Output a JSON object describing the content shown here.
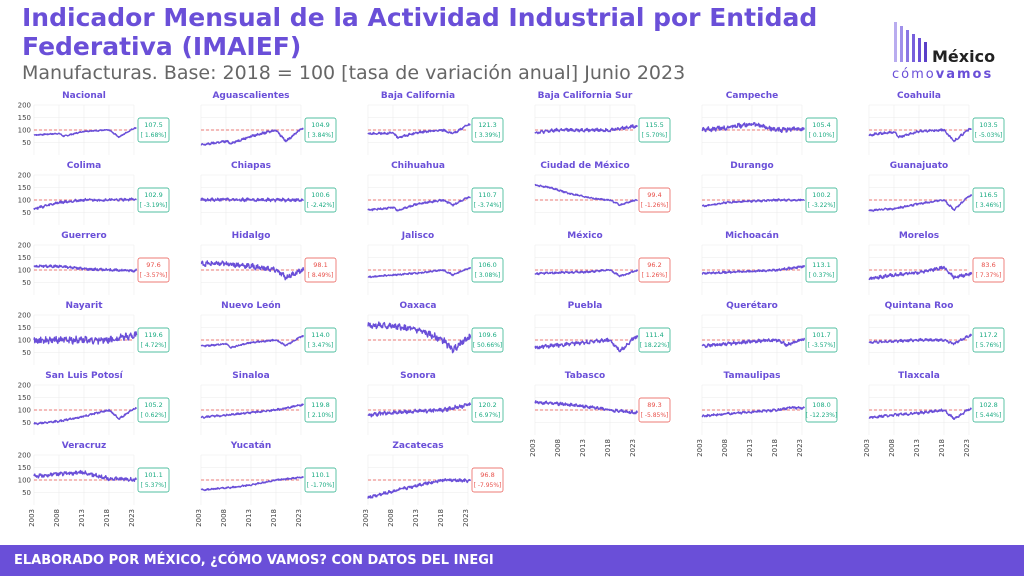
{
  "header": {
    "title": "Indicador Mensual de la Actividad Industrial por Entidad Federativa (IMAIEF)",
    "subtitle": "Manufacturas. Base: 2018 = 100 [tasa de variación anual] Junio 2023"
  },
  "logo": {
    "word1": "México",
    "word2a": "cómo",
    "word2b": "vamos"
  },
  "footer": {
    "text": "ELABORADO POR MÉXICO, ¿CÓMO VAMOS? CON DATOS DEL INEGI"
  },
  "colors": {
    "title": "#6a4fd8",
    "line": "#6a4fd8",
    "positive": "#1aab82",
    "negative": "#e8504a",
    "reference": "#e8504a",
    "footer": "#6a4fd8"
  },
  "chart_data": {
    "type": "line",
    "layout": "small multiples, 6 columns",
    "ylim": [
      0,
      200
    ],
    "yticks": [
      50,
      100,
      150,
      200
    ],
    "xticks": [
      2003,
      2008,
      2013,
      2018,
      2023
    ],
    "reference_line": 100,
    "grid": true,
    "panels": [
      {
        "name": "Nacional",
        "value": "107.5",
        "change": "[ 1.68%]",
        "positive": true,
        "anchors": [
          [
            2003,
            80
          ],
          [
            2008,
            86
          ],
          [
            2009,
            75
          ],
          [
            2013,
            95
          ],
          [
            2018,
            100
          ],
          [
            2020,
            72
          ],
          [
            2023,
            107.5
          ]
        ],
        "noise": 4
      },
      {
        "name": "Aguascalientes",
        "value": "104.9",
        "change": "[ 3.84%]",
        "positive": true,
        "anchors": [
          [
            2003,
            40
          ],
          [
            2008,
            55
          ],
          [
            2009,
            47
          ],
          [
            2013,
            75
          ],
          [
            2018,
            100
          ],
          [
            2020,
            55
          ],
          [
            2023,
            104.9
          ]
        ],
        "noise": 7
      },
      {
        "name": "Baja California",
        "value": "121.3",
        "change": "[ 3.39%]",
        "positive": true,
        "anchors": [
          [
            2003,
            85
          ],
          [
            2008,
            88
          ],
          [
            2009,
            70
          ],
          [
            2013,
            90
          ],
          [
            2018,
            100
          ],
          [
            2020,
            85
          ],
          [
            2023,
            121.3
          ]
        ],
        "noise": 7
      },
      {
        "name": "Baja California Sur",
        "value": "115.5",
        "change": "[ 5.70%]",
        "positive": true,
        "anchors": [
          [
            2003,
            90
          ],
          [
            2008,
            100
          ],
          [
            2013,
            100
          ],
          [
            2018,
            100
          ],
          [
            2023,
            115.5
          ]
        ],
        "noise": 10
      },
      {
        "name": "Campeche",
        "value": "105.4",
        "change": "[ 0.10%]",
        "positive": true,
        "anchors": [
          [
            2003,
            100
          ],
          [
            2008,
            110
          ],
          [
            2013,
            125
          ],
          [
            2018,
            100
          ],
          [
            2023,
            105.4
          ]
        ],
        "noise": 14
      },
      {
        "name": "Coahuila",
        "value": "103.5",
        "change": "[ -5.03%]",
        "positive": true,
        "anchors": [
          [
            2003,
            80
          ],
          [
            2008,
            92
          ],
          [
            2009,
            72
          ],
          [
            2013,
            95
          ],
          [
            2018,
            100
          ],
          [
            2020,
            55
          ],
          [
            2023,
            103.5
          ]
        ],
        "noise": 8
      },
      {
        "name": "Colima",
        "value": "102.9",
        "change": "[ -3.19%]",
        "positive": true,
        "anchors": [
          [
            2003,
            65
          ],
          [
            2008,
            90
          ],
          [
            2013,
            100
          ],
          [
            2018,
            100
          ],
          [
            2023,
            102.9
          ]
        ],
        "noise": 8
      },
      {
        "name": "Chiapas",
        "value": "100.6",
        "change": "[ -2.42%]",
        "positive": true,
        "anchors": [
          [
            2003,
            100
          ],
          [
            2008,
            102
          ],
          [
            2013,
            100
          ],
          [
            2018,
            100
          ],
          [
            2023,
            100.6
          ]
        ],
        "noise": 10
      },
      {
        "name": "Chihuahua",
        "value": "110.7",
        "change": "[ -3.74%]",
        "positive": true,
        "anchors": [
          [
            2003,
            60
          ],
          [
            2008,
            70
          ],
          [
            2009,
            58
          ],
          [
            2013,
            85
          ],
          [
            2018,
            100
          ],
          [
            2020,
            80
          ],
          [
            2023,
            110.7
          ]
        ],
        "noise": 6
      },
      {
        "name": "Ciudad de México",
        "value": "99.4",
        "change": "[ -1.26%]",
        "positive": false,
        "anchors": [
          [
            2003,
            160
          ],
          [
            2006,
            150
          ],
          [
            2010,
            125
          ],
          [
            2015,
            105
          ],
          [
            2018,
            100
          ],
          [
            2020,
            80
          ],
          [
            2023,
            99.4
          ]
        ],
        "noise": 5
      },
      {
        "name": "Durango",
        "value": "100.2",
        "change": "[ -3.22%]",
        "positive": true,
        "anchors": [
          [
            2003,
            75
          ],
          [
            2008,
            90
          ],
          [
            2013,
            95
          ],
          [
            2018,
            100
          ],
          [
            2023,
            100.2
          ]
        ],
        "noise": 6
      },
      {
        "name": "Guanajuato",
        "value": "116.5",
        "change": "[ 3.46%]",
        "positive": true,
        "anchors": [
          [
            2003,
            58
          ],
          [
            2008,
            65
          ],
          [
            2013,
            85
          ],
          [
            2018,
            100
          ],
          [
            2020,
            60
          ],
          [
            2023,
            116.5
          ]
        ],
        "noise": 6
      },
      {
        "name": "Guerrero",
        "value": "97.6",
        "change": "[ -3.57%]",
        "positive": false,
        "anchors": [
          [
            2003,
            115
          ],
          [
            2008,
            115
          ],
          [
            2013,
            105
          ],
          [
            2018,
            100
          ],
          [
            2023,
            97.6
          ]
        ],
        "noise": 8
      },
      {
        "name": "Hidalgo",
        "value": "98.1",
        "change": "[ 8.49%]",
        "positive": false,
        "anchors": [
          [
            2003,
            125
          ],
          [
            2008,
            125
          ],
          [
            2013,
            115
          ],
          [
            2018,
            100
          ],
          [
            2020,
            70
          ],
          [
            2023,
            98.1
          ]
        ],
        "noise": 16
      },
      {
        "name": "Jalisco",
        "value": "106.0",
        "change": "[ 3.08%]",
        "positive": true,
        "anchors": [
          [
            2003,
            72
          ],
          [
            2008,
            80
          ],
          [
            2013,
            88
          ],
          [
            2018,
            100
          ],
          [
            2020,
            80
          ],
          [
            2023,
            106
          ]
        ],
        "noise": 5
      },
      {
        "name": "México",
        "value": "96.2",
        "change": "[ 1.26%]",
        "positive": false,
        "anchors": [
          [
            2003,
            85
          ],
          [
            2008,
            90
          ],
          [
            2013,
            92
          ],
          [
            2018,
            100
          ],
          [
            2020,
            75
          ],
          [
            2023,
            96.2
          ]
        ],
        "noise": 6
      },
      {
        "name": "Michoacán",
        "value": "113.1",
        "change": "[ 0.37%]",
        "positive": true,
        "anchors": [
          [
            2003,
            85
          ],
          [
            2008,
            92
          ],
          [
            2013,
            95
          ],
          [
            2018,
            100
          ],
          [
            2023,
            113.1
          ]
        ],
        "noise": 7
      },
      {
        "name": "Morelos",
        "value": "83.6",
        "change": "[ 7.37%]",
        "positive": false,
        "anchors": [
          [
            2003,
            65
          ],
          [
            2008,
            80
          ],
          [
            2013,
            90
          ],
          [
            2018,
            110
          ],
          [
            2020,
            70
          ],
          [
            2023,
            83.6
          ]
        ],
        "noise": 10
      },
      {
        "name": "Nayarit",
        "value": "119.6",
        "change": "[ 4.72%]",
        "positive": true,
        "anchors": [
          [
            2003,
            95
          ],
          [
            2008,
            100
          ],
          [
            2013,
            100
          ],
          [
            2018,
            100
          ],
          [
            2023,
            119.6
          ]
        ],
        "noise": 22
      },
      {
        "name": "Nuevo León",
        "value": "114.0",
        "change": "[ 3.47%]",
        "positive": true,
        "anchors": [
          [
            2003,
            75
          ],
          [
            2008,
            85
          ],
          [
            2009,
            70
          ],
          [
            2013,
            90
          ],
          [
            2018,
            100
          ],
          [
            2020,
            78
          ],
          [
            2023,
            114
          ]
        ],
        "noise": 5
      },
      {
        "name": "Oaxaca",
        "value": "109.6",
        "change": "[ 50.66%]",
        "positive": true,
        "anchors": [
          [
            2003,
            160
          ],
          [
            2008,
            155
          ],
          [
            2013,
            140
          ],
          [
            2018,
            100
          ],
          [
            2019,
            80
          ],
          [
            2020,
            60
          ],
          [
            2023,
            109.6
          ]
        ],
        "noise": 20
      },
      {
        "name": "Puebla",
        "value": "111.4",
        "change": "[ 18.22%]",
        "positive": true,
        "anchors": [
          [
            2003,
            70
          ],
          [
            2008,
            80
          ],
          [
            2013,
            90
          ],
          [
            2018,
            100
          ],
          [
            2020,
            55
          ],
          [
            2023,
            111.4
          ]
        ],
        "noise": 12
      },
      {
        "name": "Querétaro",
        "value": "101.7",
        "change": "[ -3.57%]",
        "positive": true,
        "anchors": [
          [
            2003,
            75
          ],
          [
            2008,
            85
          ],
          [
            2013,
            95
          ],
          [
            2018,
            100
          ],
          [
            2020,
            80
          ],
          [
            2023,
            101.7
          ]
        ],
        "noise": 10
      },
      {
        "name": "Quintana Roo",
        "value": "117.2",
        "change": "[ 5.76%]",
        "positive": true,
        "anchors": [
          [
            2003,
            90
          ],
          [
            2008,
            95
          ],
          [
            2013,
            100
          ],
          [
            2018,
            100
          ],
          [
            2020,
            85
          ],
          [
            2023,
            117.2
          ]
        ],
        "noise": 8
      },
      {
        "name": "San Luis Potosí",
        "value": "105.2",
        "change": "[ 0.62%]",
        "positive": true,
        "anchors": [
          [
            2003,
            45
          ],
          [
            2008,
            55
          ],
          [
            2013,
            75
          ],
          [
            2018,
            100
          ],
          [
            2020,
            65
          ],
          [
            2023,
            105.2
          ]
        ],
        "noise": 6
      },
      {
        "name": "Sinaloa",
        "value": "119.8",
        "change": "[ 2.10%]",
        "positive": true,
        "anchors": [
          [
            2003,
            70
          ],
          [
            2008,
            80
          ],
          [
            2013,
            90
          ],
          [
            2018,
            100
          ],
          [
            2023,
            119.8
          ]
        ],
        "noise": 6
      },
      {
        "name": "Sonora",
        "value": "120.2",
        "change": "[ 6.97%]",
        "positive": true,
        "anchors": [
          [
            2003,
            80
          ],
          [
            2008,
            90
          ],
          [
            2013,
            95
          ],
          [
            2018,
            100
          ],
          [
            2023,
            120.2
          ]
        ],
        "noise": 12
      },
      {
        "name": "Tabasco",
        "value": "89.3",
        "change": "[ -5.85%]",
        "positive": false,
        "anchors": [
          [
            2003,
            130
          ],
          [
            2008,
            125
          ],
          [
            2013,
            115
          ],
          [
            2018,
            100
          ],
          [
            2023,
            89.3
          ]
        ],
        "noise": 10
      },
      {
        "name": "Tamaulipas",
        "value": "108.0",
        "change": "[ -12.23%]",
        "positive": true,
        "anchors": [
          [
            2003,
            75
          ],
          [
            2008,
            85
          ],
          [
            2013,
            92
          ],
          [
            2018,
            100
          ],
          [
            2021,
            110
          ],
          [
            2023,
            108
          ]
        ],
        "noise": 7
      },
      {
        "name": "Tlaxcala",
        "value": "102.8",
        "change": "[ 5.44%]",
        "positive": true,
        "anchors": [
          [
            2003,
            70
          ],
          [
            2008,
            80
          ],
          [
            2013,
            88
          ],
          [
            2018,
            100
          ],
          [
            2020,
            65
          ],
          [
            2023,
            102.8
          ]
        ],
        "noise": 8
      },
      {
        "name": "Veracruz",
        "value": "101.1",
        "change": "[ 5.37%]",
        "positive": true,
        "anchors": [
          [
            2003,
            115
          ],
          [
            2008,
            125
          ],
          [
            2013,
            130
          ],
          [
            2018,
            105
          ],
          [
            2023,
            101.1
          ]
        ],
        "noise": 12
      },
      {
        "name": "Yucatán",
        "value": "110.1",
        "change": "[ -1.70%]",
        "positive": true,
        "anchors": [
          [
            2003,
            60
          ],
          [
            2008,
            68
          ],
          [
            2013,
            80
          ],
          [
            2018,
            100
          ],
          [
            2023,
            110.1
          ]
        ],
        "noise": 5
      },
      {
        "name": "Zacatecas",
        "value": "96.8",
        "change": "[ -7.95%]",
        "positive": false,
        "anchors": [
          [
            2003,
            30
          ],
          [
            2008,
            55
          ],
          [
            2013,
            80
          ],
          [
            2018,
            100
          ],
          [
            2023,
            96.8
          ]
        ],
        "noise": 10
      }
    ]
  }
}
